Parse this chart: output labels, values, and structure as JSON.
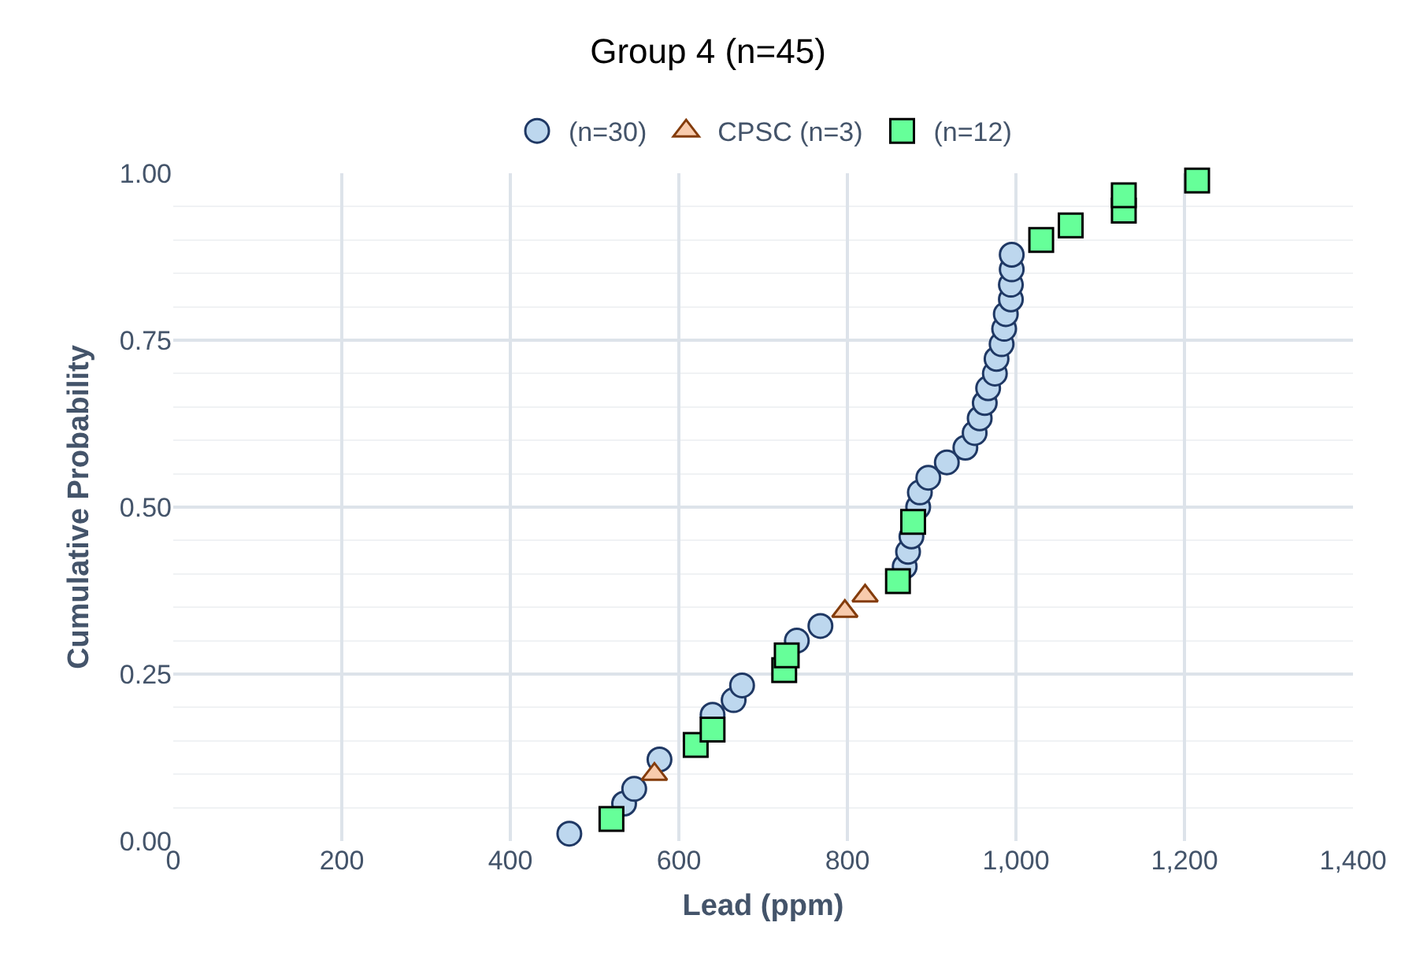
{
  "chart_data": {
    "type": "scatter",
    "title": "Group 4 (n=45)",
    "xlabel": "Lead (ppm)",
    "ylabel": "Cumulative Probability",
    "xlim": [
      0,
      1400
    ],
    "xticks": [
      0,
      200,
      400,
      600,
      800,
      {
        "value": 1000,
        "label": "1,000"
      },
      {
        "value": 1200,
        "label": "1,200"
      },
      {
        "value": 1400,
        "label": "1,400"
      }
    ],
    "ylim": [
      0,
      1
    ],
    "yticks": [
      {
        "value": 0,
        "label": "0.00"
      },
      {
        "value": 0.25,
        "label": "0.25"
      },
      {
        "value": 0.5,
        "label": "0.50"
      },
      {
        "value": 0.75,
        "label": "0.75"
      },
      {
        "value": 1,
        "label": "1.00"
      }
    ],
    "grid": true,
    "legend": "top",
    "series": [
      {
        "name": "(n=30)",
        "color": "#bdd7ee",
        "marker": "circle",
        "x": [
          470,
          535,
          547,
          577,
          640,
          665,
          675,
          740,
          768,
          868,
          872,
          876,
          884,
          886,
          896,
          918,
          940,
          951,
          957,
          963,
          967,
          975,
          977,
          983,
          986,
          988,
          994,
          994,
          995,
          995
        ],
        "values": [
          0.011,
          0.056,
          0.078,
          0.122,
          0.189,
          0.211,
          0.233,
          0.3,
          0.322,
          0.411,
          0.433,
          0.456,
          0.5,
          0.522,
          0.544,
          0.567,
          0.589,
          0.611,
          0.633,
          0.656,
          0.678,
          0.7,
          0.722,
          0.744,
          0.767,
          0.789,
          0.811,
          0.833,
          0.856,
          0.878
        ]
      },
      {
        "name": "CPSC (n=3)",
        "color": "#f8cbad",
        "marker": "triangle",
        "x": [
          571,
          797,
          821
        ],
        "values": [
          0.1,
          0.344,
          0.367
        ]
      },
      {
        "name": "(n=12)",
        "color": "#66ff99",
        "marker": "square",
        "x": [
          520,
          620,
          640,
          725,
          728,
          860,
          878,
          1030,
          1065,
          1128,
          1128,
          1215
        ],
        "values": [
          0.033,
          0.144,
          0.167,
          0.256,
          0.278,
          0.389,
          0.478,
          0.9,
          0.922,
          0.944,
          0.967,
          0.989
        ]
      }
    ]
  }
}
